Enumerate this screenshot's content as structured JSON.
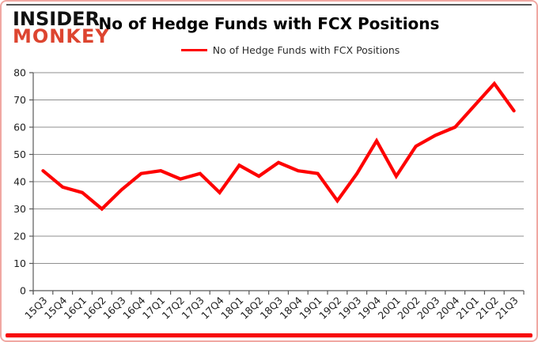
{
  "brand": {
    "line1": "INSIDER",
    "line2": "MONKEY",
    "line2_color": "#dd4530"
  },
  "header": {
    "title": "No of Hedge Funds with FCX Positions"
  },
  "legend": {
    "label": "No of Hedge Funds with FCX Positions",
    "marker_color": "#fe0000"
  },
  "colors": {
    "series_red": "#fe0000",
    "gridline": "#8f8f8f",
    "axis": "#595959",
    "tick_text": "#1f1f1f",
    "frame_border": "#f0a8a2",
    "bottom_bar": "#f70c0b"
  },
  "chart_data": {
    "type": "line",
    "title": "No of Hedge Funds with FCX Positions",
    "categories": [
      "15Q3",
      "15Q4",
      "16Q1",
      "16Q2",
      "16Q3",
      "16Q4",
      "17Q1",
      "17Q2",
      "17Q3",
      "17Q4",
      "18Q1",
      "18Q2",
      "18Q3",
      "18Q4",
      "19Q1",
      "19Q2",
      "19Q3",
      "19Q4",
      "20Q1",
      "20Q2",
      "20Q3",
      "20Q4",
      "21Q1",
      "21Q2",
      "21Q3"
    ],
    "series": [
      {
        "name": "No of Hedge Funds with FCX Positions",
        "color": "#fe0000",
        "values": [
          44,
          38,
          36,
          30,
          37,
          43,
          44,
          41,
          43,
          36,
          46,
          42,
          47,
          44,
          43,
          33,
          43,
          55,
          42,
          53,
          57,
          60,
          68,
          76,
          66
        ]
      }
    ],
    "xlabel": "",
    "ylabel": "",
    "ylim": [
      0,
      80
    ],
    "ytick_step": 10,
    "yticks": [
      "0",
      "10",
      "20",
      "30",
      "40",
      "50",
      "60",
      "70",
      "80"
    ],
    "grid": "horizontal-only",
    "legend_position": "top-center",
    "x_label_rotation": 45
  }
}
